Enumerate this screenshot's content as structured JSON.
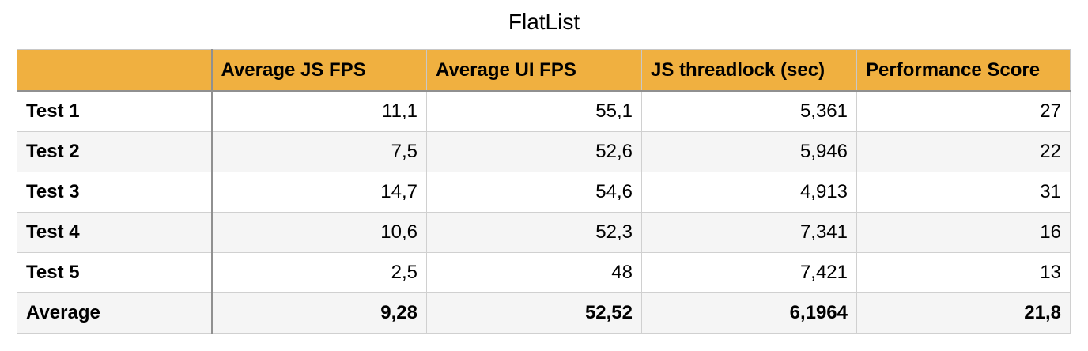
{
  "chart_data": {
    "type": "table",
    "title": "FlatList",
    "columns": [
      "",
      "Average JS FPS",
      "Average UI FPS",
      "JS threadlock (sec)",
      "Performance Score"
    ],
    "rows": [
      {
        "label": "Test 1",
        "values": [
          "11,1",
          "55,1",
          "5,361",
          "27"
        ]
      },
      {
        "label": "Test 2",
        "values": [
          "7,5",
          "52,6",
          "5,946",
          "22"
        ]
      },
      {
        "label": "Test 3",
        "values": [
          "14,7",
          "54,6",
          "4,913",
          "31"
        ]
      },
      {
        "label": "Test 4",
        "values": [
          "10,6",
          "52,3",
          "7,341",
          "16"
        ]
      },
      {
        "label": "Test 5",
        "values": [
          "2,5",
          "48",
          "7,421",
          "13"
        ]
      },
      {
        "label": "Average",
        "values": [
          "9,28",
          "52,52",
          "6,1964",
          "21,8"
        ]
      }
    ],
    "header_color": "#f0b040",
    "stripe_color": "#f5f5f5"
  }
}
